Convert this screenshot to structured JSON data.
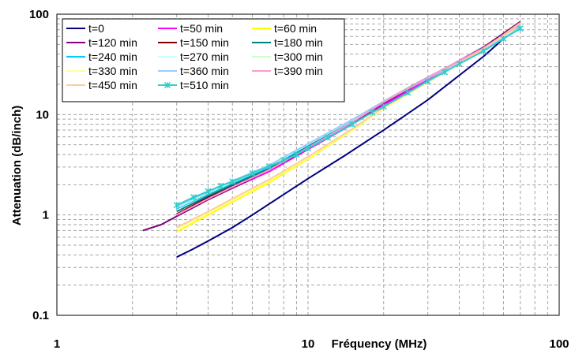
{
  "chart_data": {
    "type": "line",
    "xscale": "log",
    "yscale": "log",
    "xlim": [
      1,
      100
    ],
    "ylim": [
      0.1,
      100
    ],
    "xlabel": "Fréquency (MHz)",
    "ylabel": "Attenuation (dB/inch)",
    "x_ticks": [
      {
        "value": 1,
        "label": "1"
      },
      {
        "value": 10,
        "label": "10"
      },
      {
        "value": 100,
        "label": "100"
      }
    ],
    "y_ticks": [
      {
        "value": 0.1,
        "label": "0.1"
      },
      {
        "value": 1,
        "label": "1"
      },
      {
        "value": 10,
        "label": "10"
      },
      {
        "value": 100,
        "label": "100"
      }
    ],
    "grid": true,
    "legend_position": "top-left",
    "series": [
      {
        "name": "t=0",
        "color": "#000080",
        "marker": "none",
        "x": [
          3,
          3.5,
          4,
          5,
          6,
          8,
          10,
          14,
          20,
          30,
          50,
          70
        ],
        "y": [
          0.38,
          0.46,
          0.55,
          0.75,
          1.0,
          1.6,
          2.3,
          3.9,
          7.0,
          14.0,
          38.0,
          80.0
        ]
      },
      {
        "name": "t=50 min",
        "color": "#FF00FF",
        "marker": "none",
        "x": [
          3,
          4,
          5,
          7,
          10,
          15,
          20,
          30,
          50,
          70
        ],
        "y": [
          1.0,
          1.45,
          1.85,
          2.7,
          4.5,
          8.0,
          12.5,
          22.0,
          45.0,
          78.0
        ]
      },
      {
        "name": "t=60 min",
        "color": "#FFFF00",
        "marker": "none",
        "x": [
          3,
          4,
          5,
          7,
          10,
          15,
          20,
          30,
          50,
          70
        ],
        "y": [
          0.68,
          1.0,
          1.35,
          2.1,
          3.6,
          7.0,
          11.5,
          21.0,
          45.0,
          80.0
        ]
      },
      {
        "name": "t=120 min",
        "color": "#800080",
        "marker": "none",
        "x": [
          2.2,
          2.6,
          3,
          4,
          5,
          7,
          10,
          15,
          20,
          30,
          50,
          70
        ],
        "y": [
          0.7,
          0.8,
          0.97,
          1.42,
          1.85,
          2.8,
          4.6,
          8.2,
          13.0,
          23.0,
          47.0,
          84.0
        ]
      },
      {
        "name": "t=150 min",
        "color": "#800000",
        "marker": "none",
        "x": [
          3,
          4,
          5,
          7,
          10,
          15,
          20,
          30,
          50,
          70
        ],
        "y": [
          1.02,
          1.5,
          1.95,
          2.85,
          4.8,
          8.5,
          13.5,
          23.5,
          46.0,
          78.0
        ]
      },
      {
        "name": "t=180 min",
        "color": "#008080",
        "marker": "none",
        "x": [
          3,
          4,
          5,
          7,
          10,
          15,
          20,
          30,
          50,
          70
        ],
        "y": [
          1.08,
          1.55,
          2.0,
          2.9,
          4.9,
          8.6,
          13.6,
          23.5,
          45.0,
          76.0
        ]
      },
      {
        "name": "t=240 min",
        "color": "#00CCFF",
        "marker": "none",
        "x": [
          3,
          4,
          5,
          7,
          10,
          15,
          20,
          30,
          50,
          70
        ],
        "y": [
          1.15,
          1.62,
          2.08,
          3.0,
          5.0,
          8.7,
          13.4,
          23.0,
          44.0,
          74.0
        ]
      },
      {
        "name": "t=270 min",
        "color": "#CCFFFF",
        "marker": "none",
        "x": [
          3,
          4,
          5,
          7,
          10,
          15,
          20,
          30,
          50,
          70
        ],
        "y": [
          1.18,
          1.66,
          2.12,
          3.05,
          5.05,
          8.8,
          13.5,
          23.0,
          44.0,
          73.0
        ]
      },
      {
        "name": "t=300 min",
        "color": "#CCFFCC",
        "marker": "none",
        "x": [
          3,
          4,
          5,
          7,
          10,
          15,
          20,
          30,
          50,
          70
        ],
        "y": [
          1.2,
          1.68,
          2.15,
          3.1,
          5.1,
          8.9,
          13.6,
          23.2,
          44.5,
          73.5
        ]
      },
      {
        "name": "t=330 min",
        "color": "#FFFF99",
        "marker": "none",
        "x": [
          3,
          4,
          5,
          7,
          10,
          15,
          20,
          30,
          50,
          70
        ],
        "y": [
          0.72,
          1.05,
          1.4,
          2.2,
          3.7,
          7.1,
          11.6,
          21.0,
          44.0,
          78.0
        ]
      },
      {
        "name": "t=360 min",
        "color": "#99CCFF",
        "marker": "none",
        "x": [
          3,
          4,
          5,
          7,
          10,
          15,
          20,
          30,
          50,
          70
        ],
        "y": [
          1.22,
          1.7,
          2.18,
          3.12,
          5.12,
          8.9,
          13.5,
          23.0,
          44.0,
          73.0
        ]
      },
      {
        "name": "t=390 min",
        "color": "#FF99CC",
        "marker": "none",
        "x": [
          3,
          4,
          5,
          7,
          10,
          15,
          20,
          30,
          50,
          70
        ],
        "y": [
          1.0,
          1.45,
          1.9,
          2.8,
          4.7,
          8.4,
          13.3,
          23.5,
          46.0,
          79.0
        ]
      },
      {
        "name": "t=450 min",
        "color": "#FFCC99",
        "marker": "none",
        "x": [
          3,
          4,
          5,
          7,
          10,
          15,
          20,
          30,
          50,
          70
        ],
        "y": [
          0.75,
          1.08,
          1.45,
          2.25,
          3.8,
          7.2,
          11.8,
          21.5,
          45.0,
          82.0
        ]
      },
      {
        "name": "t=510 min",
        "color": "#33CCCC",
        "marker": "asterisk",
        "x": [
          3,
          3.5,
          4,
          4.5,
          5,
          6,
          7,
          8,
          9,
          10,
          12,
          15,
          18,
          20,
          25,
          30,
          35,
          40,
          50,
          60,
          70
        ],
        "y": [
          1.25,
          1.5,
          1.72,
          1.95,
          2.15,
          2.6,
          3.05,
          3.5,
          4.0,
          4.6,
          5.9,
          8.0,
          10.5,
          12.0,
          16.5,
          21.5,
          26.5,
          32.0,
          43.0,
          57.0,
          72.0
        ]
      }
    ]
  }
}
